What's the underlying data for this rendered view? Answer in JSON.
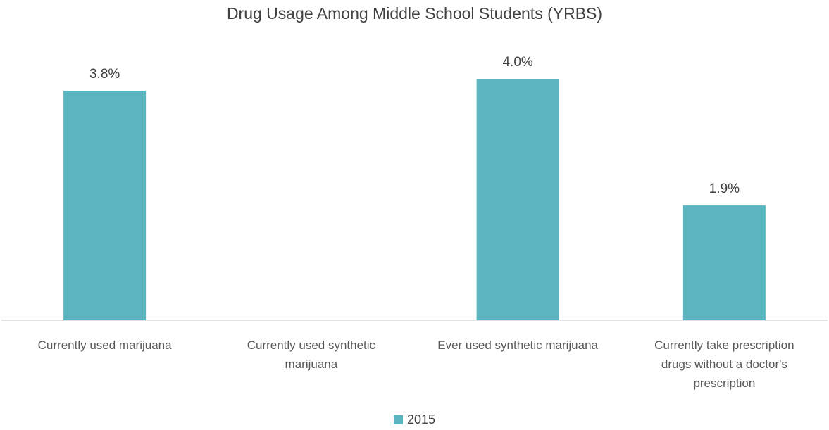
{
  "chart_data": {
    "type": "bar",
    "title": "Drug Usage Among Middle School Students (YRBS)",
    "categories": [
      [
        "Currently used marijuana"
      ],
      [
        "Currently used synthetic",
        "marijuana"
      ],
      [
        "Ever used synthetic marijuana"
      ],
      [
        "Currently take prescription",
        "drugs without a doctor's",
        "prescription"
      ]
    ],
    "series": [
      {
        "name": "2015",
        "values": [
          3.8,
          null,
          4.0,
          1.9
        ],
        "labels": [
          "3.8%",
          "",
          "4.0%",
          "1.9%"
        ],
        "color": "#5ab5bf"
      }
    ],
    "ylim": [
      0,
      4.4
    ],
    "grid": false,
    "legend": "bottom",
    "axis_color": "#d9d9d9"
  }
}
